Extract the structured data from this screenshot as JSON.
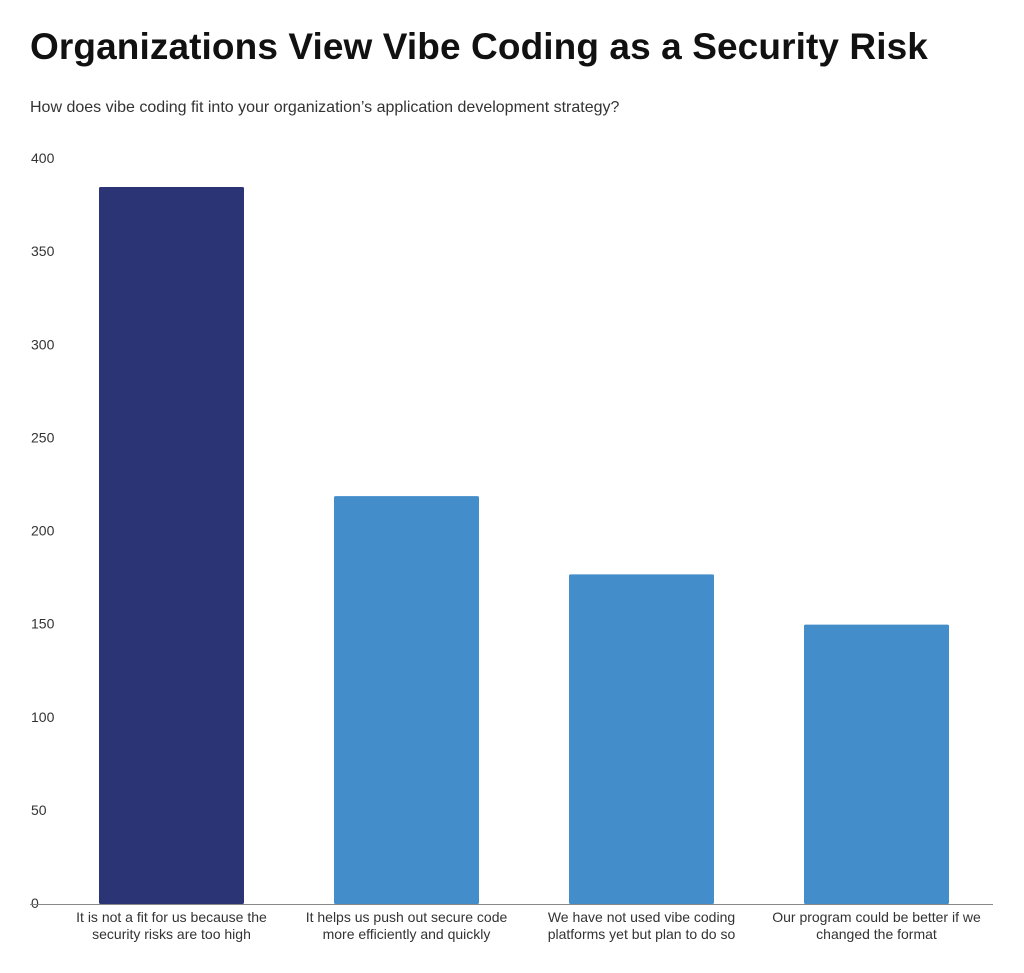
{
  "header": {
    "title": "Organizations View Vibe Coding as a Security Risk",
    "subtitle": "How does vibe coding fit into your organization’s application development strategy?"
  },
  "colors": {
    "highlight_bar": "#2b3474",
    "bar": "#428dca",
    "axis": "#888888",
    "text": "#333333"
  },
  "chart_data": {
    "type": "bar",
    "categories": [
      "It is not a fit for us because the security risks are too high",
      "It helps us push out secure code more efficiently and quickly",
      "We have not used vibe coding platforms yet but plan to do so",
      "Our program could be better if we changed the format"
    ],
    "category_label_lines": [
      [
        "It is not a fit for us because the",
        "security risks are too high"
      ],
      [
        "It helps us push out secure code",
        "more efficiently and quickly"
      ],
      [
        "We have not used vibe coding",
        "platforms yet but plan to do so"
      ],
      [
        "Our program could be better if we",
        "changed the format"
      ]
    ],
    "values": [
      385,
      219,
      177,
      150
    ],
    "highlight_index": 0,
    "ylim": [
      0,
      400
    ],
    "yticks": [
      0,
      50,
      100,
      150,
      200,
      250,
      300,
      350,
      400
    ],
    "grid": false,
    "legend": "none"
  }
}
